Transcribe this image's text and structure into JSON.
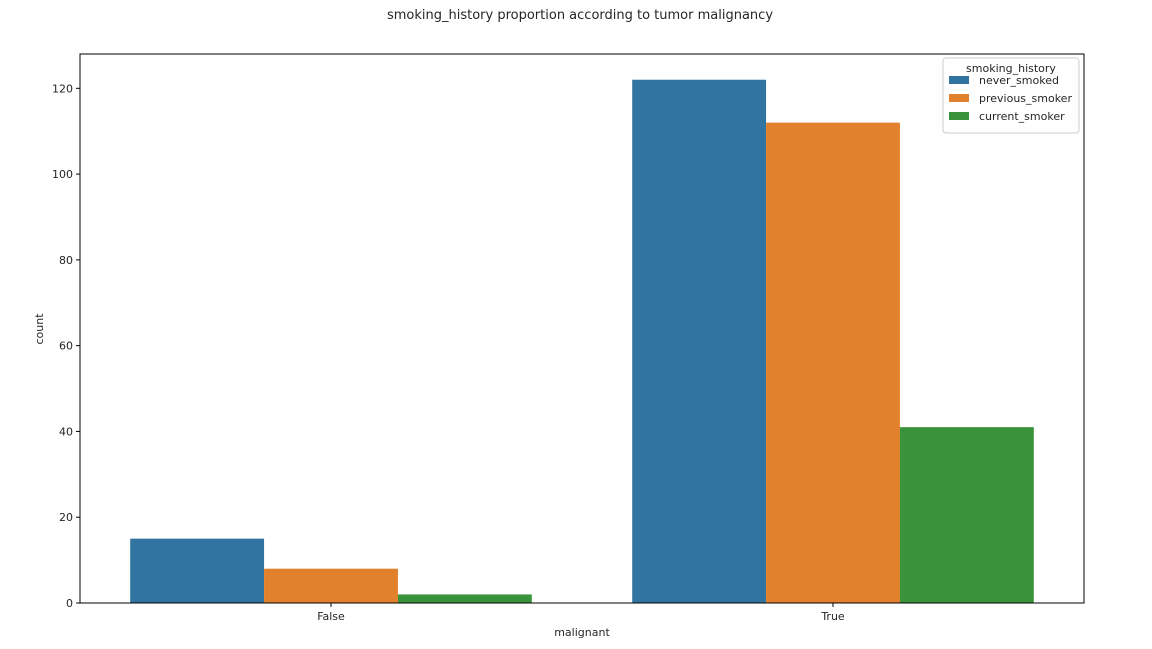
{
  "chart_data": {
    "type": "bar",
    "title": "smoking_history proportion according to tumor malignancy",
    "xlabel": "malignant",
    "ylabel": "count",
    "categories": [
      "False",
      "True"
    ],
    "series": [
      {
        "name": "never_smoked",
        "values": [
          15,
          122
        ],
        "color": "#3274a1"
      },
      {
        "name": "previous_smoker",
        "values": [
          8,
          112
        ],
        "color": "#e1812c"
      },
      {
        "name": "current_smoker",
        "values": [
          2,
          41
        ],
        "color": "#3a923a"
      }
    ],
    "ylim": [
      0,
      128
    ],
    "yticks": [
      0,
      20,
      40,
      60,
      80,
      100,
      120
    ],
    "grid": false,
    "legend": {
      "title": "smoking_history",
      "position": "top-right"
    }
  }
}
